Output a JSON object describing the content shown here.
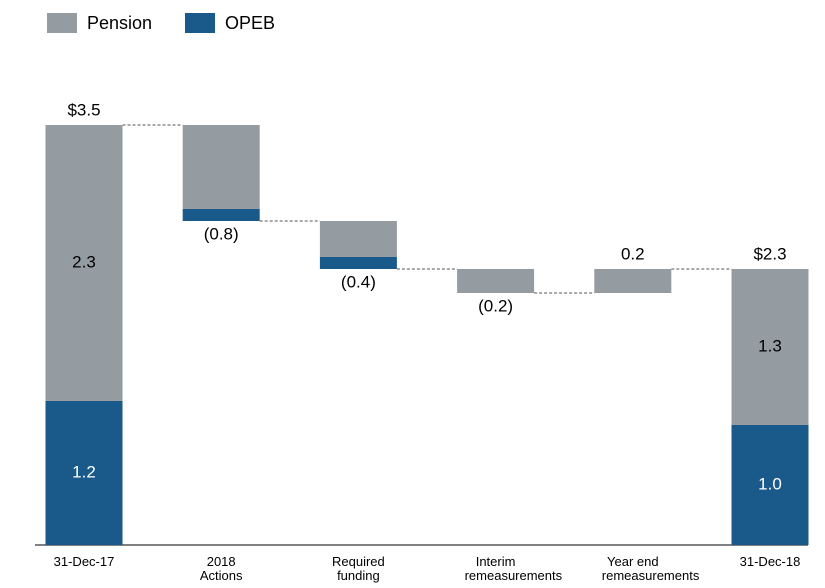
{
  "chart_data": {
    "type": "waterfall",
    "categories": [
      "31-Dec-17",
      "2018 Actions",
      "Required funding",
      "Interim remeasurements",
      "Year end remeasurements",
      "31-Dec-18"
    ],
    "measure": [
      "absolute",
      "relative",
      "relative",
      "relative",
      "relative",
      "absolute"
    ],
    "series": [
      {
        "name": "Pension",
        "color": "#949ca1",
        "values": [
          2.3,
          -0.7,
          -0.3,
          -0.2,
          0.2,
          1.3
        ],
        "value_labels": [
          "2.3",
          null,
          null,
          null,
          null,
          "1.3"
        ]
      },
      {
        "name": "OPEB",
        "color": "#1a5a8a",
        "values": [
          1.2,
          -0.1,
          -0.1,
          null,
          null,
          1.0
        ],
        "value_labels": [
          "1.2",
          null,
          null,
          null,
          null,
          "1.0"
        ]
      }
    ],
    "totals": [
      3.5,
      -0.8,
      -0.4,
      -0.2,
      0.2,
      2.3
    ],
    "total_labels": [
      "$3.5",
      "(0.8)",
      "(0.4)",
      "(0.2)",
      "0.2",
      "$2.3"
    ],
    "ylim": [
      0,
      3.5
    ]
  }
}
